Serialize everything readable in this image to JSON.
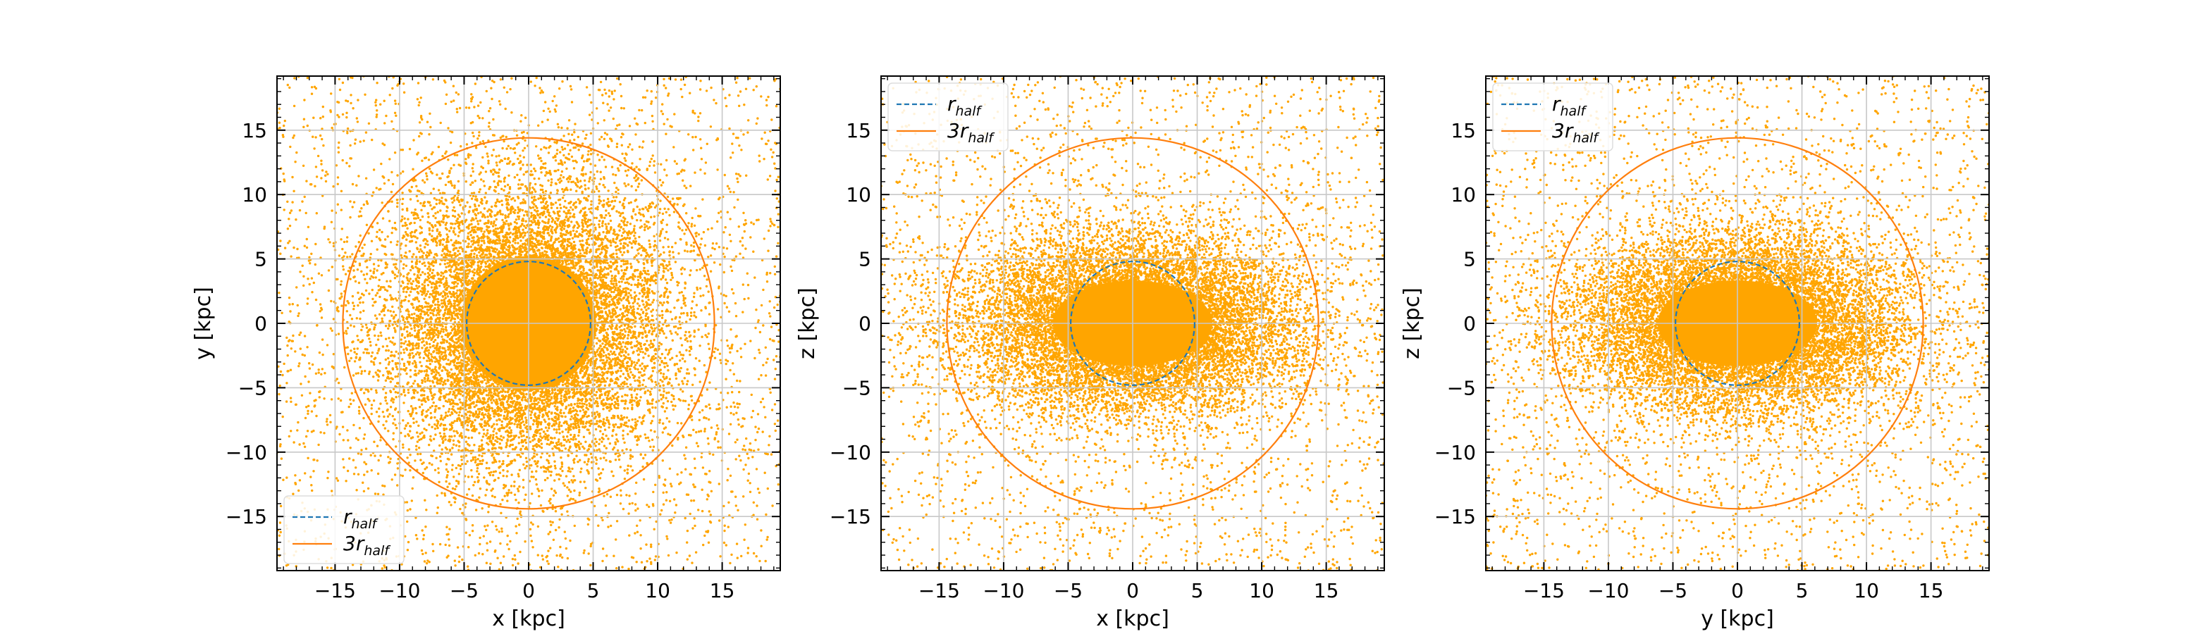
{
  "colors": {
    "points": "#ffa500",
    "r_half_circle": "#1f77b4",
    "three_r_half_circle": "#ff7f0e",
    "grid": "#c8c8c8",
    "axes": "#000000"
  },
  "legend_labels": {
    "r_half": {
      "main": "r",
      "sub": "half"
    },
    "three_r_half": {
      "main": "3r",
      "sub": "half"
    }
  },
  "chart_data": [
    {
      "type": "scatter",
      "xlabel": "x [kpc]",
      "ylabel": "y [kpc]",
      "xlim": [
        -19.5,
        19.5
      ],
      "ylim": [
        -19.2,
        19.2
      ],
      "xticks": [
        -15,
        -10,
        -5,
        0,
        5,
        10,
        15
      ],
      "yticks": [
        -15,
        -10,
        -5,
        0,
        5,
        10,
        15
      ],
      "xtick_labels": [
        "−15",
        "−10",
        "−5",
        "0",
        "5",
        "10",
        "15"
      ],
      "ytick_labels": [
        "−15",
        "−10",
        "−5",
        "0",
        "5",
        "10",
        "15"
      ],
      "grid": true,
      "legend_placement": "lower left",
      "scatter_distribution": {
        "sigma_x": 5.5,
        "sigma_y": 5.5,
        "background_density": "uniform sparse"
      },
      "circles": [
        {
          "name": "r_half",
          "center": [
            0,
            0
          ],
          "radius": 4.8,
          "style": "dashed"
        },
        {
          "name": "3r_half",
          "center": [
            0,
            0
          ],
          "radius": 14.4,
          "style": "solid"
        }
      ]
    },
    {
      "type": "scatter",
      "xlabel": "x [kpc]",
      "ylabel": "z [kpc]",
      "xlim": [
        -19.5,
        19.5
      ],
      "ylim": [
        -19.2,
        19.2
      ],
      "xticks": [
        -15,
        -10,
        -5,
        0,
        5,
        10,
        15
      ],
      "yticks": [
        -15,
        -10,
        -5,
        0,
        5,
        10,
        15
      ],
      "xtick_labels": [
        "−15",
        "−10",
        "−5",
        "0",
        "5",
        "10",
        "15"
      ],
      "ytick_labels": [
        "−15",
        "−10",
        "−5",
        "0",
        "5",
        "10",
        "15"
      ],
      "grid": true,
      "legend_placement": "upper left",
      "scatter_distribution": {
        "sigma_x": 6.5,
        "sigma_y": 3.5,
        "background_density": "uniform sparse"
      },
      "circles": [
        {
          "name": "r_half",
          "center": [
            0,
            0
          ],
          "radius": 4.8,
          "style": "dashed"
        },
        {
          "name": "3r_half",
          "center": [
            0,
            0
          ],
          "radius": 14.4,
          "style": "solid"
        }
      ]
    },
    {
      "type": "scatter",
      "xlabel": "y [kpc]",
      "ylabel": "z [kpc]",
      "xlim": [
        -19.5,
        19.5
      ],
      "ylim": [
        -19.2,
        19.2
      ],
      "xticks": [
        -15,
        -10,
        -5,
        0,
        5,
        10,
        15
      ],
      "yticks": [
        -15,
        -10,
        -5,
        0,
        5,
        10,
        15
      ],
      "xtick_labels": [
        "−15",
        "−10",
        "−5",
        "0",
        "5",
        "10",
        "15"
      ],
      "ytick_labels": [
        "−15",
        "−10",
        "−5",
        "0",
        "5",
        "10",
        "15"
      ],
      "grid": true,
      "legend_placement": "upper left",
      "scatter_distribution": {
        "sigma_x": 6.5,
        "sigma_y": 3.5,
        "background_density": "uniform sparse"
      },
      "circles": [
        {
          "name": "r_half",
          "center": [
            0,
            0
          ],
          "radius": 4.8,
          "style": "dashed"
        },
        {
          "name": "3r_half",
          "center": [
            0,
            0
          ],
          "radius": 14.4,
          "style": "solid"
        }
      ]
    }
  ]
}
